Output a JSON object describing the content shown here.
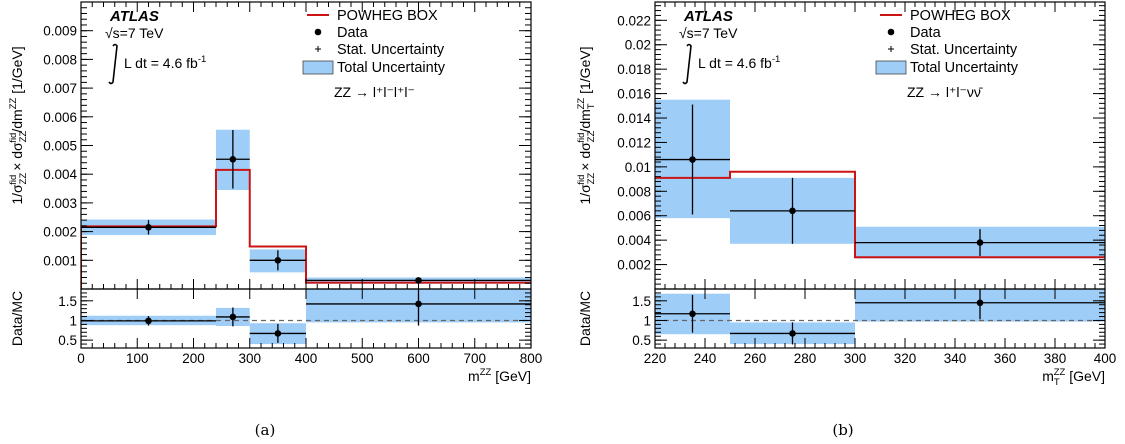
{
  "chart_data": [
    {
      "panel": "(a)",
      "type": "bar",
      "caption": "(a)",
      "atlas_label": "ATLAS",
      "energy": "√s=7 TeV",
      "lumi": "L dt = 4.6 fb",
      "lumi_exp": "-1",
      "process": "ZZ → l⁺l⁻l⁺l⁻",
      "legend": [
        "POWHEG BOX",
        "Data",
        "Stat. Uncertainty",
        "Total Uncertainty"
      ],
      "ylabel": "1/σ_ZZ^fid × dσ_ZZ^fid/dm^ZZ [1/GeV]",
      "ylabel_ratio": "Data/MC",
      "xlabel": "m^ZZ [GeV]",
      "xlim": [
        0,
        800
      ],
      "ylim": [
        0,
        0.01
      ],
      "ratio_ylim": [
        0.3,
        1.8
      ],
      "xticks": [
        "0",
        "100",
        "200",
        "300",
        "400",
        "500",
        "600",
        "700",
        "800"
      ],
      "yticks": [
        "0.001",
        "0.002",
        "0.003",
        "0.004",
        "0.005",
        "0.006",
        "0.007",
        "0.008",
        "0.009"
      ],
      "ratio_yticks": [
        "0.5",
        "1",
        "1.5"
      ],
      "bins": [
        {
          "lo": 0,
          "hi": 240,
          "mc": 0.00218,
          "data": 0.00215,
          "x": 120,
          "stat": 0.00025,
          "tot_lo": 0.00188,
          "tot_hi": 0.00242,
          "ratio": 0.99,
          "r_stat": 0.12,
          "r_lo": 0.88,
          "r_hi": 1.12
        },
        {
          "lo": 240,
          "hi": 300,
          "mc": 0.00415,
          "data": 0.00452,
          "x": 270,
          "stat": 0.00102,
          "tot_lo": 0.00345,
          "tot_hi": 0.00555,
          "ratio": 1.09,
          "r_stat": 0.24,
          "r_lo": 0.86,
          "r_hi": 1.32
        },
        {
          "lo": 300,
          "hi": 400,
          "mc": 0.00148,
          "data": 0.001,
          "x": 350,
          "stat": 0.00035,
          "tot_lo": 0.00058,
          "tot_hi": 0.00138,
          "ratio": 0.67,
          "r_stat": 0.24,
          "r_lo": 0.4,
          "r_hi": 0.93
        },
        {
          "lo": 400,
          "hi": 800,
          "mc": 0.00022,
          "data": 0.0003,
          "x": 600,
          "stat": 0.0001,
          "tot_lo": 0.00018,
          "tot_hi": 0.0004,
          "ratio": 1.42,
          "r_stat": 0.55,
          "r_lo": 0.95,
          "r_hi": 1.8
        }
      ]
    },
    {
      "panel": "(b)",
      "type": "bar",
      "caption": "(b)",
      "atlas_label": "ATLAS",
      "energy": "√s=7 TeV",
      "lumi": "L dt = 4.6 fb",
      "lumi_exp": "-1",
      "process": "ZZ → l⁺l⁻νν̄",
      "legend": [
        "POWHEG BOX",
        "Data",
        "Stat. Uncertainty",
        "Total Uncertainty"
      ],
      "ylabel": "1/σ_ZZ^fid × dσ_ZZ^fid/dm_T^ZZ [1/GeV]",
      "ylabel_ratio": "Data/MC",
      "xlabel": "m_T^ZZ [GeV]",
      "xlim": [
        220,
        400
      ],
      "ylim": [
        0,
        0.0235
      ],
      "ratio_ylim": [
        0.3,
        1.8
      ],
      "xticks": [
        "220",
        "240",
        "260",
        "280",
        "300",
        "320",
        "340",
        "360",
        "380",
        "400"
      ],
      "yticks": [
        "0.002",
        "0.004",
        "0.006",
        "0.008",
        "0.01",
        "0.012",
        "0.014",
        "0.016",
        "0.018",
        "0.02",
        "0.022"
      ],
      "ratio_yticks": [
        "0.5",
        "1",
        "1.5"
      ],
      "bins": [
        {
          "lo": 220,
          "hi": 250,
          "mc": 0.0091,
          "data": 0.0106,
          "x": 235,
          "stat": 0.0045,
          "tot_lo": 0.0058,
          "tot_hi": 0.0155,
          "ratio": 1.17,
          "r_stat": 0.48,
          "r_lo": 0.65,
          "r_hi": 1.68
        },
        {
          "lo": 250,
          "hi": 300,
          "mc": 0.0096,
          "data": 0.0064,
          "x": 275,
          "stat": 0.0027,
          "tot_lo": 0.0037,
          "tot_hi": 0.0091,
          "ratio": 0.67,
          "r_stat": 0.28,
          "r_lo": 0.4,
          "r_hi": 0.95
        },
        {
          "lo": 300,
          "hi": 400,
          "mc": 0.0026,
          "data": 0.0038,
          "x": 350,
          "stat": 0.0011,
          "tot_lo": 0.0025,
          "tot_hi": 0.0051,
          "ratio": 1.45,
          "r_stat": 0.42,
          "r_lo": 0.97,
          "r_hi": 1.97
        }
      ]
    }
  ]
}
